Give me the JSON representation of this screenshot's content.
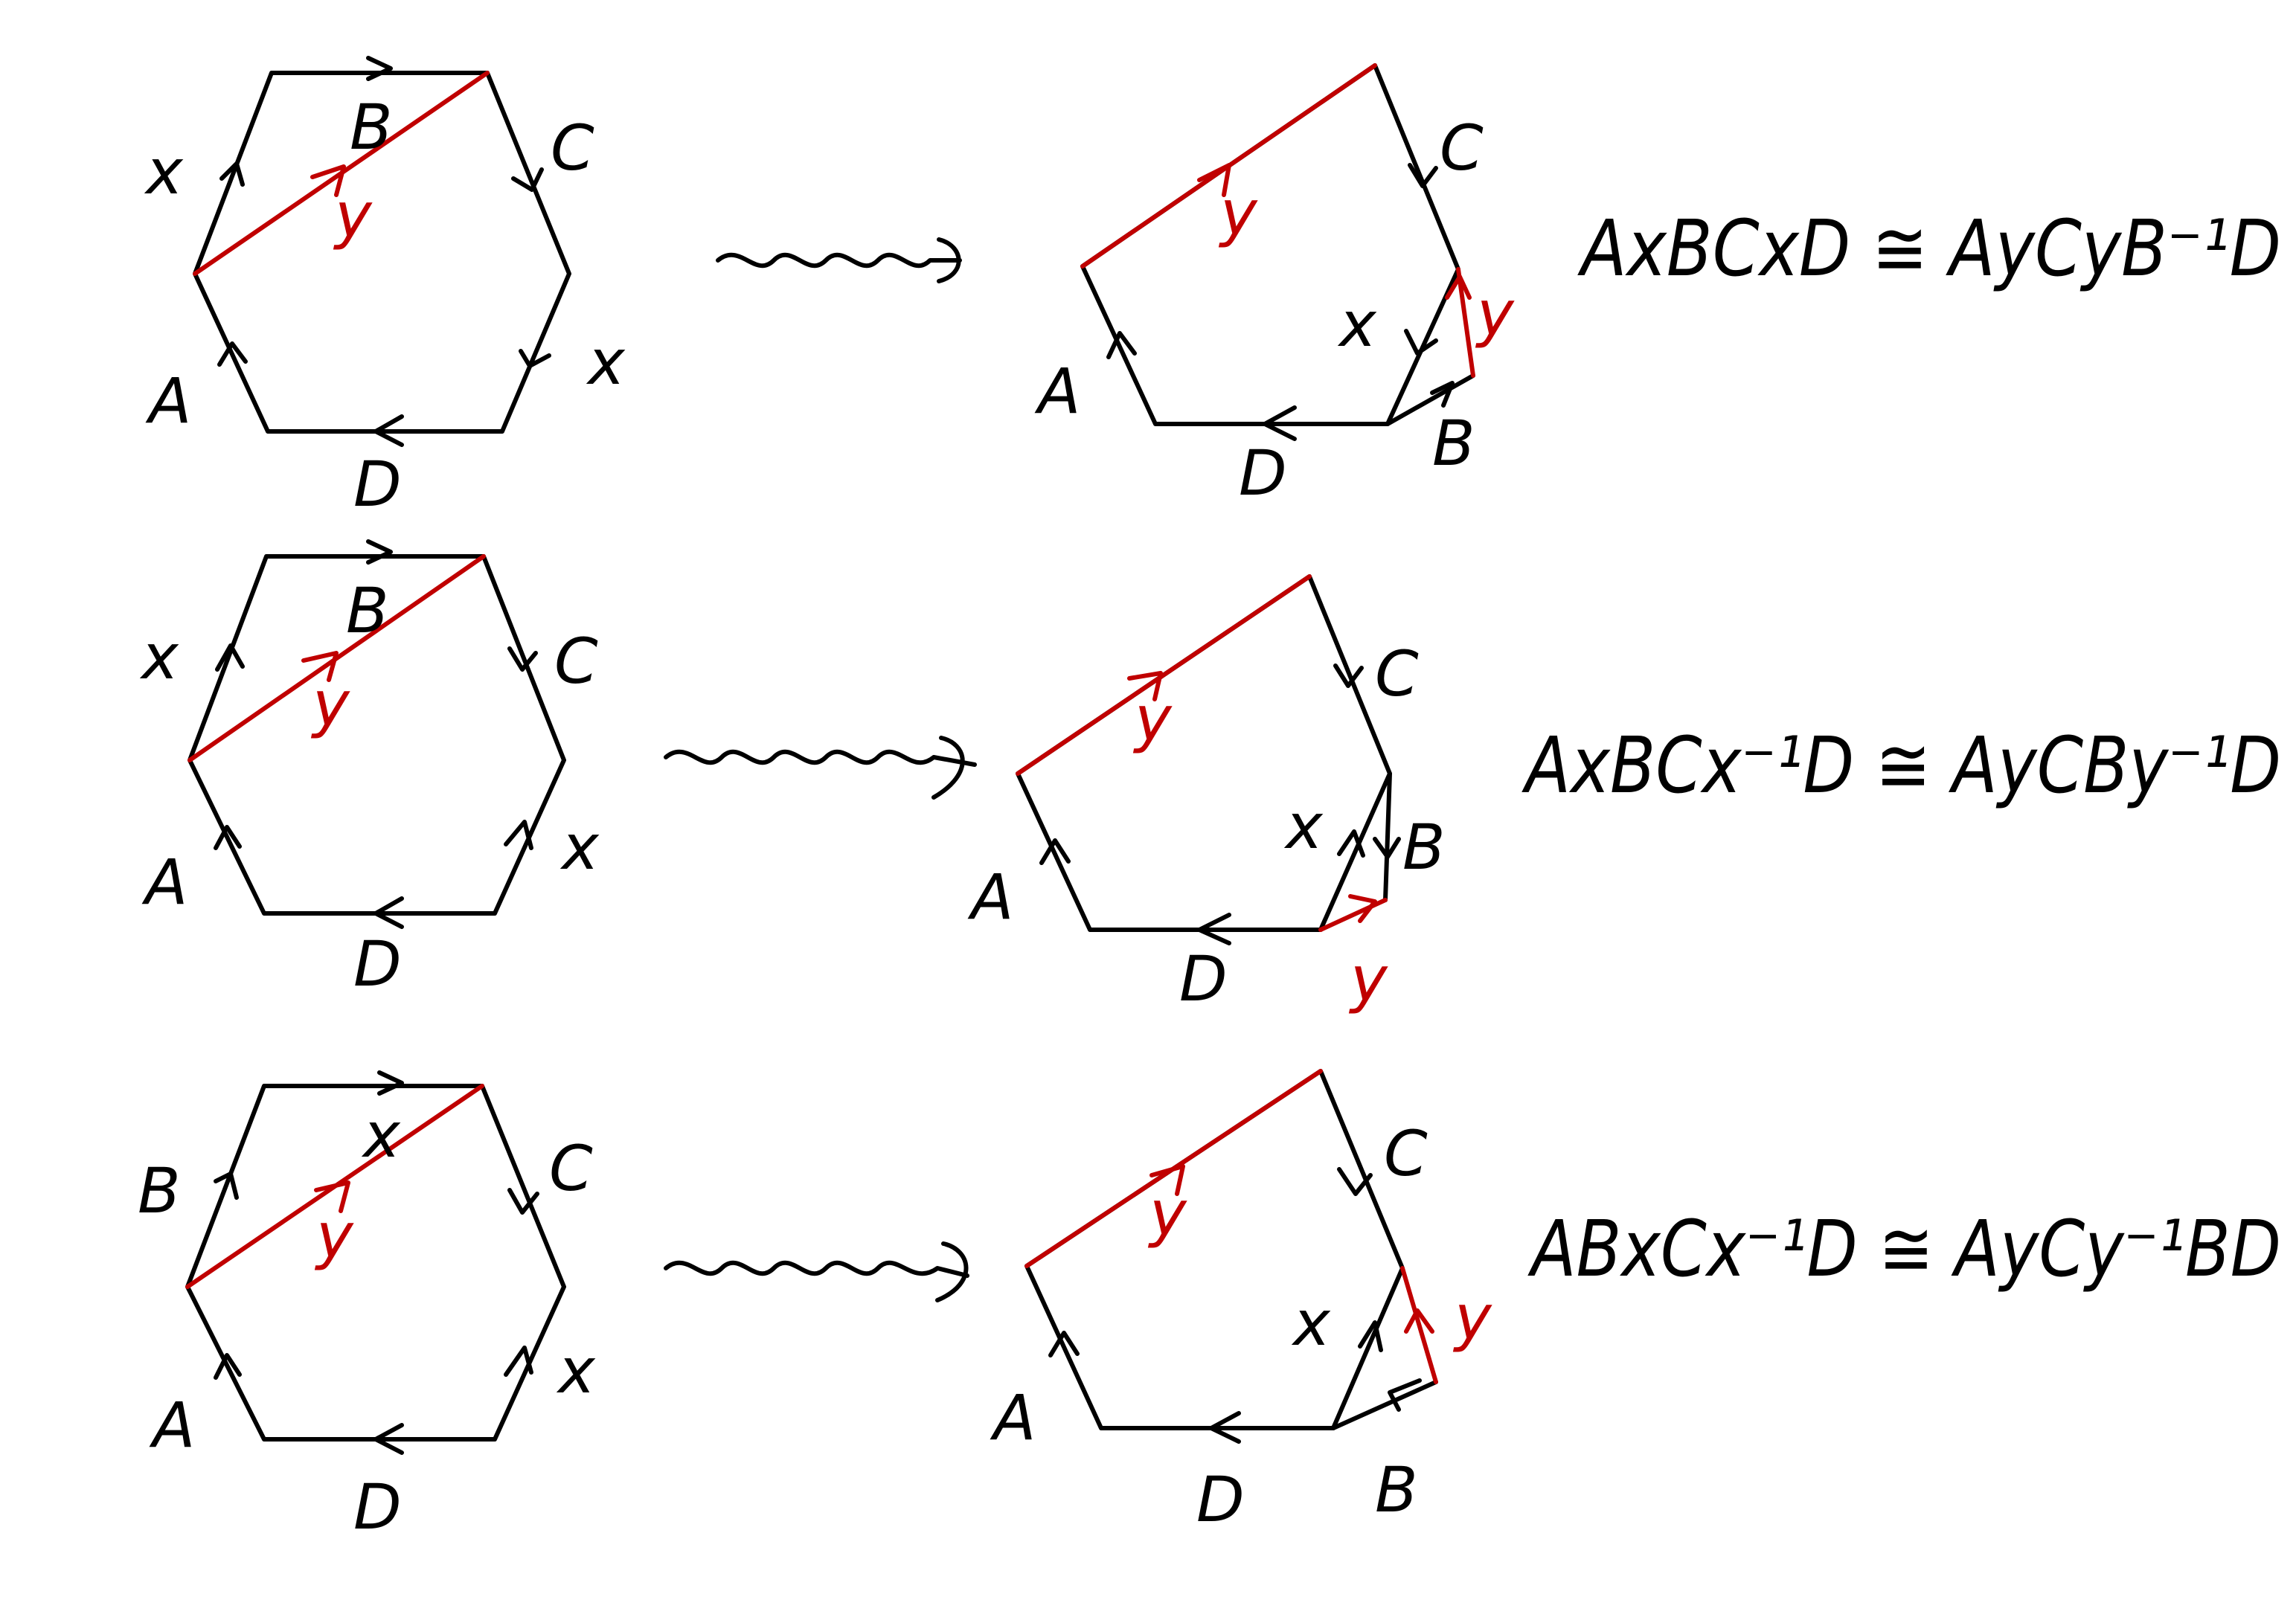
{
  "colors": {
    "ink": "#000000",
    "cut": "#c00000"
  },
  "rows": [
    {
      "hexagon": {
        "top": "B",
        "upper_right": "C",
        "lower_right": "x",
        "bottom": "D",
        "lower_left": "A",
        "upper_left": "x",
        "cut": "y"
      },
      "pentagon": {
        "upper_right": "C",
        "lower_right_edge": "x",
        "new_edge": "y",
        "bottom_right": "B",
        "bottom": "D",
        "left": "A",
        "cut": "y"
      },
      "equation": "AxBCxD ≅ AyCyB⁻¹D"
    },
    {
      "hexagon": {
        "top": "B",
        "upper_right": "C",
        "lower_right": "x",
        "bottom": "D",
        "lower_left": "A",
        "upper_left": "x",
        "cut": "y"
      },
      "pentagon": {
        "upper_right": "C",
        "lower_right_edge": "x",
        "new_edge": "B",
        "bottom_right": "y",
        "bottom": "D",
        "left": "A",
        "cut": "y"
      },
      "equation": "AxBCx⁻¹D ≅ AyCBy⁻¹D"
    },
    {
      "hexagon": {
        "top": "x",
        "upper_right": "C",
        "lower_right": "x",
        "bottom": "D",
        "lower_left": "A",
        "upper_left": "B",
        "cut": "y"
      },
      "pentagon": {
        "upper_right": "C",
        "lower_right_edge": "x",
        "new_edge": "y",
        "bottom_right": "B",
        "bottom": "D",
        "left": "A",
        "cut": "y"
      },
      "equation": "ABxCx⁻¹D ≅ AyCy⁻¹BD"
    }
  ]
}
